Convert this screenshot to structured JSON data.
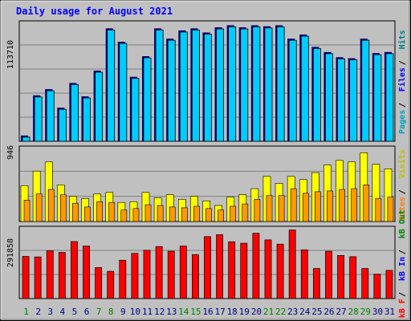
{
  "chart_data": [
    {
      "type": "bar",
      "panel": "pages-files-hits",
      "title": "Daily usage for August 2021",
      "categories": [
        "1",
        "2",
        "3",
        "4",
        "5",
        "6",
        "7",
        "8",
        "9",
        "10",
        "11",
        "12",
        "13",
        "14",
        "15",
        "16",
        "17",
        "18",
        "19",
        "20",
        "21",
        "22",
        "23",
        "24",
        "25",
        "26",
        "27",
        "28",
        "29",
        "30",
        "31"
      ],
      "weekend_days": [
        "1",
        "7",
        "8",
        "14",
        "15",
        "21",
        "22",
        "28",
        "29"
      ],
      "ymax_label": "113710",
      "ylim": [
        0,
        113710
      ],
      "legend": [
        "Pages",
        "Files",
        "Hits"
      ],
      "series": [
        {
          "name": "Hits",
          "color": "#00ccff",
          "values": [
            4000,
            43000,
            49000,
            31000,
            55000,
            42000,
            67000,
            108000,
            95000,
            61000,
            81000,
            108000,
            98000,
            106000,
            108000,
            104000,
            109000,
            111000,
            109000,
            111000,
            110000,
            111000,
            98000,
            102000,
            90000,
            85000,
            80000,
            79000,
            98000,
            84000,
            85000
          ]
        },
        {
          "name": "Files",
          "color": "#00ccff",
          "values": [
            3800,
            41000,
            47000,
            29000,
            53000,
            40000,
            65000,
            106000,
            93000,
            59000,
            78000,
            106000,
            96000,
            104000,
            106000,
            102000,
            107000,
            109000,
            107000,
            109000,
            108000,
            109000,
            96000,
            100000,
            88000,
            83000,
            78000,
            77000,
            96000,
            82000,
            83000
          ]
        }
      ]
    },
    {
      "type": "bar",
      "panel": "visits-sites",
      "categories": [
        "1",
        "2",
        "3",
        "4",
        "5",
        "6",
        "7",
        "8",
        "9",
        "10",
        "11",
        "12",
        "13",
        "14",
        "15",
        "16",
        "17",
        "18",
        "19",
        "20",
        "21",
        "22",
        "23",
        "24",
        "25",
        "26",
        "27",
        "28",
        "29",
        "30",
        "31"
      ],
      "ymax_label": "946",
      "ylim": [
        0,
        946
      ],
      "legend": [
        "Sites",
        "Visits"
      ],
      "series": [
        {
          "name": "Visits",
          "color": "#ffff00",
          "values": [
            470,
            660,
            780,
            480,
            330,
            300,
            360,
            380,
            250,
            260,
            380,
            310,
            350,
            290,
            330,
            270,
            210,
            320,
            350,
            430,
            590,
            500,
            590,
            550,
            640,
            740,
            800,
            780,
            900,
            750,
            690
          ]
        },
        {
          "name": "Sites",
          "color": "#ff9900",
          "values": [
            280,
            360,
            420,
            350,
            240,
            190,
            260,
            250,
            150,
            170,
            220,
            210,
            190,
            180,
            200,
            170,
            150,
            200,
            230,
            290,
            340,
            340,
            430,
            370,
            390,
            400,
            420,
            430,
            480,
            300,
            320
          ]
        }
      ]
    },
    {
      "type": "bar",
      "panel": "kbytes",
      "categories": [
        "1",
        "2",
        "3",
        "4",
        "5",
        "6",
        "7",
        "8",
        "9",
        "10",
        "11",
        "12",
        "13",
        "14",
        "15",
        "16",
        "17",
        "18",
        "19",
        "20",
        "21",
        "22",
        "23",
        "24",
        "25",
        "26",
        "27",
        "28",
        "29",
        "30",
        "31"
      ],
      "ymax_label": "291858",
      "ylim": [
        0,
        291858
      ],
      "legend": [
        "kB F",
        "kB In",
        "kB Out"
      ],
      "series": [
        {
          "name": "kB F",
          "color": "#ff0000",
          "values": [
            178000,
            176000,
            202000,
            195000,
            241000,
            222000,
            131000,
            115000,
            162000,
            191000,
            204000,
            220000,
            200000,
            222000,
            186000,
            262000,
            270000,
            240000,
            234000,
            276000,
            248000,
            230000,
            290000,
            206000,
            127000,
            200000,
            182000,
            177000,
            127000,
            103000,
            119000
          ]
        }
      ]
    }
  ]
}
